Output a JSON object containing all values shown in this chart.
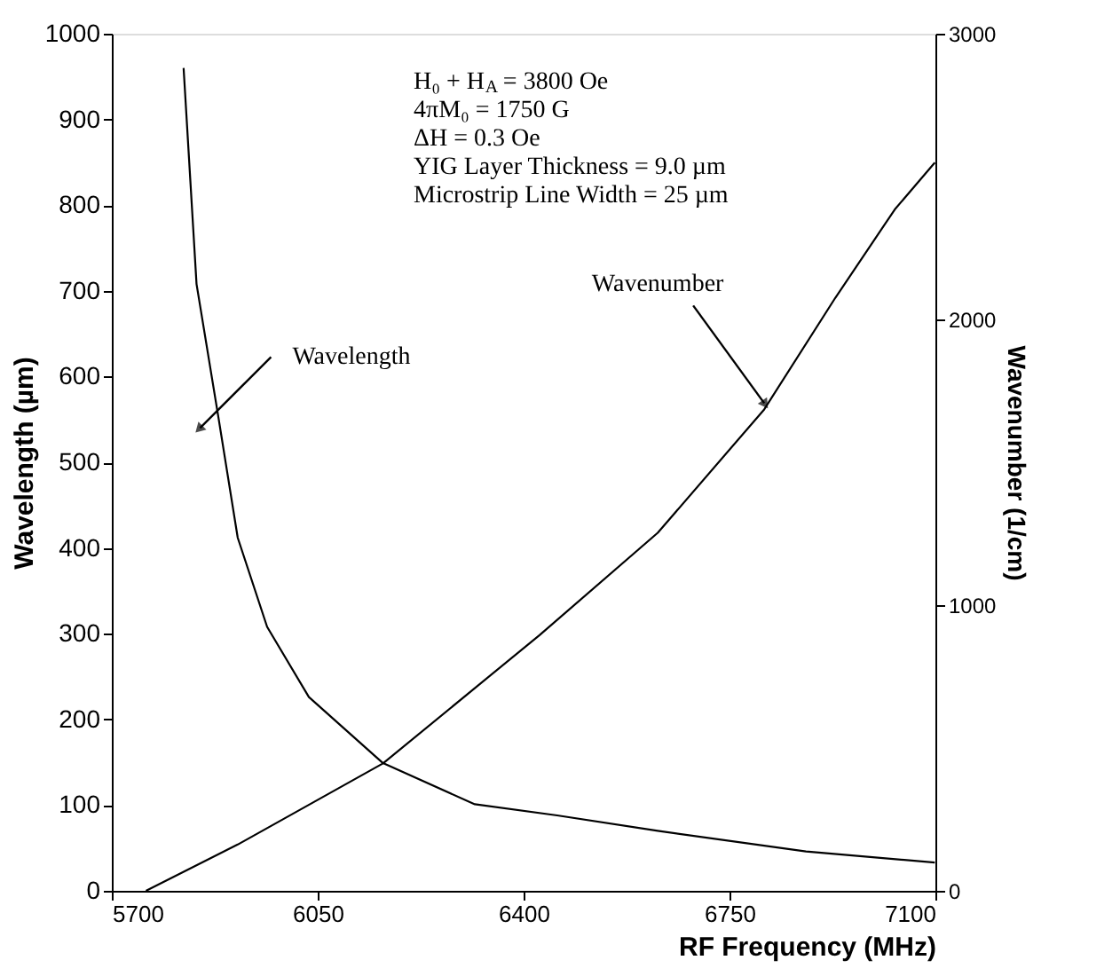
{
  "chart_data": {
    "type": "line",
    "xlabel": "RF Frequency (MHz)",
    "ylabel": "Wavelength (µm)",
    "y2label": "Wavenumber (1/cm)",
    "xlim": [
      5700,
      7100
    ],
    "xticks": [
      5700,
      6050,
      6400,
      6750,
      7100
    ],
    "ylim": [
      0,
      1000
    ],
    "yticks": [
      0,
      100,
      200,
      300,
      400,
      500,
      600,
      700,
      800,
      900,
      1000
    ],
    "y2lim": [
      0,
      3000
    ],
    "y2ticks": [
      0,
      1000,
      2000,
      3000
    ],
    "grid": false,
    "marker": "none",
    "line_style": "solid",
    "series": [
      {
        "color": "#000000",
        "x": [
          5822,
          5844,
          5882,
          5914,
          5964,
          6035,
          6161,
          6317,
          6457,
          6628,
          6880,
          7099
        ],
        "values": [
          960,
          708,
          549,
          412,
          308,
          226,
          149,
          101,
          88,
          70,
          46,
          33
        ]
      },
      {
        "color": "#000000",
        "axis": "y2",
        "x": [
          5758,
          5914,
          6161,
          6427,
          6628,
          6809,
          6930,
          7031,
          7099
        ],
        "values": [
          0,
          162,
          446,
          895,
          1253,
          1685,
          2076,
          2385,
          2549
        ]
      }
    ],
    "annotations": [
      "H₀ + H$_{A}$ = 3800 Oe",
      "4πM₀ = 1750 G",
      "ΔH = 0.3 Oe",
      "YIG Layer Thickness = 9.0 µm",
      "Microstrip Line Width = 25 µm",
      {
        "text": "Wavelength",
        "x": 5850,
        "y": 540
      },
      {
        "text": "Wavenumber",
        "x": 6809,
        "y": 569
      }
    ]
  }
}
